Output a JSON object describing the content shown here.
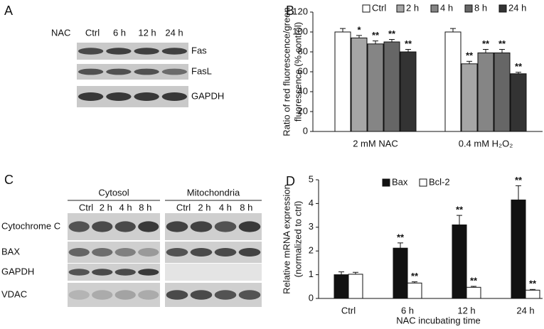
{
  "panel_labels": [
    "A",
    "B",
    "C",
    "D"
  ],
  "blot_a": {
    "treatment": "NAC",
    "lanes": [
      "Ctrl",
      "6 h",
      "12 h",
      "24 h"
    ],
    "proteins": [
      "Fas",
      "FasL",
      "GAPDH"
    ]
  },
  "blot_c": {
    "fractions": [
      "Cytosol",
      "Mitochondria"
    ],
    "lanes": [
      "Ctrl",
      "2 h",
      "4 h",
      "8 h"
    ],
    "proteins": [
      "Cytochrome C",
      "BAX",
      "GAPDH",
      "VDAC"
    ]
  },
  "chart_data": [
    {
      "type": "bar",
      "ylabel_lines": [
        "Ratio of red fluorescence/green",
        "fluorescence (% control)"
      ],
      "categories": [
        "2 mM NAC",
        "0.4 mM H₂O₂"
      ],
      "series": [
        {
          "name": "Ctrl",
          "color": "#ffffff",
          "values": [
            100,
            100
          ],
          "errors": [
            3.5,
            3.5
          ],
          "significance": [
            null,
            null
          ]
        },
        {
          "name": "2 h",
          "color": "#a6a6a6",
          "values": [
            94,
            68
          ],
          "errors": [
            2.5,
            2.5
          ],
          "significance": [
            "*",
            "**"
          ]
        },
        {
          "name": "4 h",
          "color": "#858585",
          "values": [
            88,
            79
          ],
          "errors": [
            3,
            3.5
          ],
          "significance": [
            "**",
            "**"
          ]
        },
        {
          "name": "8 h",
          "color": "#666666",
          "values": [
            90,
            79
          ],
          "errors": [
            2.5,
            3.5
          ],
          "significance": [
            "**",
            "**"
          ]
        },
        {
          "name": "24 h",
          "color": "#333333",
          "values": [
            80,
            58
          ],
          "errors": [
            2.5,
            1.5
          ],
          "significance": [
            "**",
            "**"
          ]
        }
      ],
      "ylim": [
        0,
        120
      ],
      "yticks": [
        0,
        20,
        40,
        60,
        80,
        100,
        120
      ],
      "legend": "top"
    },
    {
      "type": "bar",
      "ylabel_lines": [
        "Relative mRNA expression",
        "(normalized to ctrl)"
      ],
      "xlabel": "NAC incubating time",
      "categories": [
        "Ctrl",
        "6 h",
        "12 h",
        "24 h"
      ],
      "series": [
        {
          "name": "Bax",
          "color": "#111111",
          "values": [
            1,
            2.12,
            3.1,
            4.15
          ],
          "errors": [
            0.12,
            0.22,
            0.4,
            0.6
          ],
          "significance": [
            null,
            "**",
            "**",
            "**"
          ]
        },
        {
          "name": "Bcl-2",
          "color": "#ffffff",
          "values": [
            1.02,
            0.65,
            0.47,
            0.35
          ],
          "errors": [
            0.08,
            0.05,
            0.04,
            0.03
          ],
          "significance": [
            null,
            "**",
            "**",
            "**"
          ]
        }
      ],
      "ylim": [
        0,
        5
      ],
      "yticks": [
        0,
        1,
        2,
        3,
        4,
        5
      ],
      "legend": "top"
    }
  ]
}
